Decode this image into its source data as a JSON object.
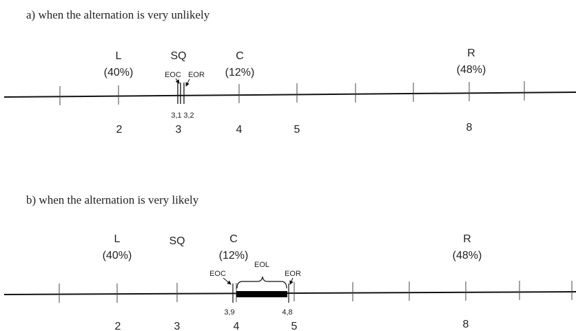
{
  "panel_a": {
    "caption": "a)   when the alternation is very unlikely",
    "party_L": {
      "name": "L",
      "share": "(40%)"
    },
    "party_SQ": {
      "name": "SQ"
    },
    "party_C": {
      "name": "C",
      "share": "(12%)"
    },
    "party_R": {
      "name": "R",
      "share": "(48%)"
    },
    "eoc": "EOC",
    "eor": "EOR",
    "val_eoc": "3,1",
    "val_eor": "3,2",
    "ticks": [
      "2",
      "3",
      "4",
      "5",
      "8"
    ]
  },
  "panel_b": {
    "caption": "b)   when the alternation is very likely",
    "party_L": {
      "name": "L",
      "share": "(40%)"
    },
    "party_SQ": {
      "name": "SQ"
    },
    "party_C": {
      "name": "C",
      "share": "(12%)"
    },
    "party_R": {
      "name": "R",
      "share": "(48%)"
    },
    "eoc": "EOC",
    "eol": "EOL",
    "eor": "EOR",
    "val_eoc": "3,9",
    "val_eor": "4,8",
    "ticks": [
      "2",
      "3",
      "4",
      "5",
      "8"
    ]
  }
}
